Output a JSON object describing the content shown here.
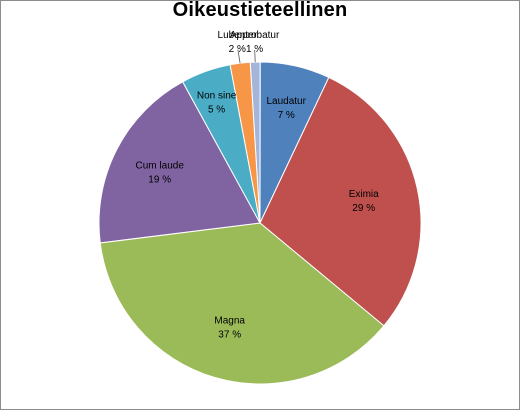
{
  "chart_data": {
    "type": "pie",
    "title": "Oikeustieteellinen",
    "slices": [
      {
        "label": "Approbatur",
        "value": 1,
        "value_label": "1 %",
        "color": "#a5b5d9"
      },
      {
        "label": "Laudatur",
        "value": 7,
        "value_label": "7 %",
        "color": "#4f81bd"
      },
      {
        "label": "Eximia",
        "value": 29,
        "value_label": "29 %",
        "color": "#c0504d"
      },
      {
        "label": "Magna",
        "value": 37,
        "value_label": "37 %",
        "color": "#9bbb59"
      },
      {
        "label": "Cum laude",
        "value": 19,
        "value_label": "19 %",
        "color": "#8064a2"
      },
      {
        "label": "Non sine",
        "value": 5,
        "value_label": "5 %",
        "color": "#4bacc6"
      },
      {
        "label": "Lubenter",
        "value": 2,
        "value_label": "2 %",
        "color": "#f79646"
      }
    ]
  }
}
